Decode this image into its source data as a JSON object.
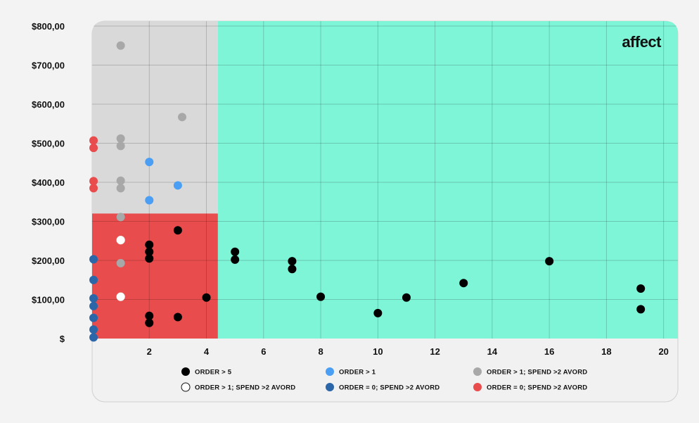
{
  "brand": {
    "logo_text": "affect"
  },
  "chart_data": {
    "type": "scatter",
    "xlim": [
      0,
      20.5
    ],
    "ylim": [
      0,
      800
    ],
    "x_ticks": [
      2,
      4,
      6,
      8,
      10,
      12,
      14,
      16,
      18,
      20
    ],
    "x_tick_labels": [
      "2",
      "4",
      "6",
      "8",
      "10",
      "12",
      "14",
      "16",
      "18",
      "20"
    ],
    "y_ticks": [
      0,
      100,
      200,
      300,
      400,
      500,
      600,
      700,
      800
    ],
    "y_tick_labels": [
      "$",
      "$100,00",
      "$200,00",
      "$300,00",
      "$400,00",
      "$500,00",
      "$600,00",
      "$700,00",
      "$800,00"
    ],
    "grid": true,
    "regions": [
      {
        "x": [
          0,
          4.4
        ],
        "y": [
          0,
          800
        ],
        "color": "#d9d9d9"
      },
      {
        "x": [
          4.4,
          20.5
        ],
        "y": [
          0,
          800
        ],
        "color": "#7ff5d7"
      },
      {
        "x": [
          0,
          4.4
        ],
        "y": [
          0,
          320
        ],
        "color": "#e94c4c"
      }
    ],
    "legend_position": "bottom",
    "series": [
      {
        "name": "ORDER > 5",
        "color": "#000000",
        "points": [
          [
            2,
            240
          ],
          [
            2,
            222
          ],
          [
            2,
            205
          ],
          [
            3,
            277
          ],
          [
            2,
            58
          ],
          [
            2,
            40
          ],
          [
            3,
            55
          ],
          [
            4,
            105
          ],
          [
            5,
            222
          ],
          [
            5,
            202
          ],
          [
            7,
            198
          ],
          [
            7,
            178
          ],
          [
            8,
            107
          ],
          [
            10,
            65
          ],
          [
            11,
            105
          ],
          [
            13,
            142
          ],
          [
            16,
            198
          ],
          [
            19.2,
            128
          ],
          [
            19.2,
            75
          ]
        ]
      },
      {
        "name": "ORDER > 1",
        "color": "#4a9ff5",
        "points": [
          [
            2,
            452
          ],
          [
            2,
            354
          ],
          [
            3,
            392
          ]
        ]
      },
      {
        "name": "ORDER > 1; SPEND >2 AVORD",
        "color": "#a8a8a8",
        "points": [
          [
            1,
            750
          ],
          [
            3.15,
            567
          ],
          [
            1,
            512
          ],
          [
            1,
            493
          ],
          [
            1,
            404
          ],
          [
            1,
            385
          ],
          [
            1,
            311
          ],
          [
            1,
            193
          ]
        ]
      },
      {
        "name": "ORDER > 1; SPEND >2 AVORD",
        "color": "#ffffff",
        "points": [
          [
            1,
            252
          ],
          [
            1,
            107
          ]
        ]
      },
      {
        "name": "ORDER = 0; SPEND >2 AVORD",
        "color": "#2a66a8",
        "points": [
          [
            0.05,
            203
          ],
          [
            0.05,
            150
          ],
          [
            0.05,
            103
          ],
          [
            0.05,
            83
          ],
          [
            0.05,
            53
          ],
          [
            0.05,
            23
          ],
          [
            0.05,
            3
          ]
        ]
      },
      {
        "name": "ORDER = 0; SPEND >2 AVORD",
        "color": "#e94c4c",
        "points": [
          [
            0.05,
            507
          ],
          [
            0.05,
            488
          ],
          [
            0.05,
            403
          ],
          [
            0.05,
            385
          ]
        ]
      }
    ]
  }
}
